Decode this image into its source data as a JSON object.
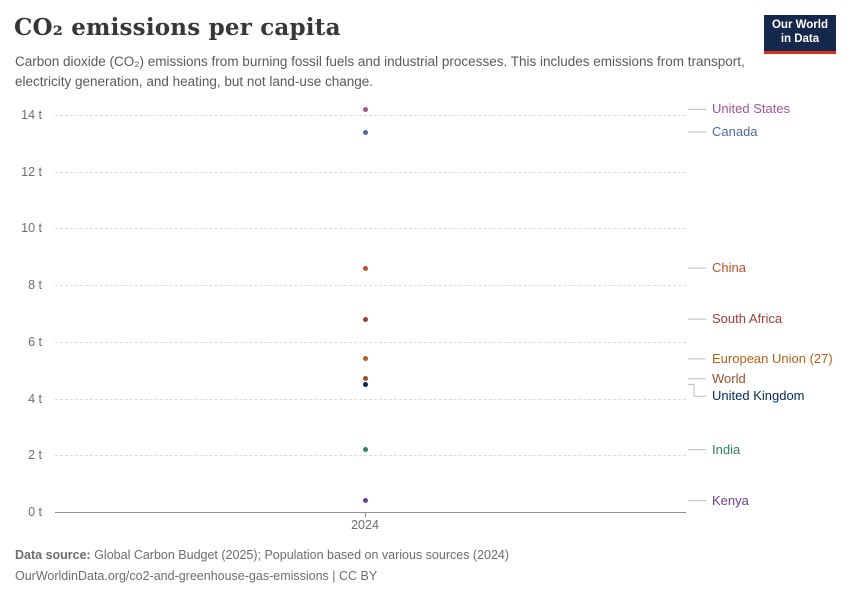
{
  "header": {
    "title": "CO₂ emissions per capita",
    "subtitle": "Carbon dioxide (CO₂) emissions from burning fossil fuels and industrial processes. This includes emissions from transport, electricity generation, and heating, but not land-use change."
  },
  "logo": {
    "line1": "Our World",
    "line2": "in Data",
    "bg_color": "#14284D",
    "accent_color": "#D8301F"
  },
  "chart_data": {
    "type": "scatter",
    "title": "CO₂ emissions per capita",
    "x_label": "2024",
    "unit": "t",
    "ylim": [
      0,
      14
    ],
    "grid": true,
    "yticks": [
      {
        "value": 0,
        "label": "0 t"
      },
      {
        "value": 2,
        "label": "2 t"
      },
      {
        "value": 4,
        "label": "4 t"
      },
      {
        "value": 6,
        "label": "6 t"
      },
      {
        "value": 8,
        "label": "8 t"
      },
      {
        "value": 10,
        "label": "10 t"
      },
      {
        "value": 12,
        "label": "12 t"
      },
      {
        "value": 14,
        "label": "14 t"
      }
    ],
    "series": [
      {
        "name": "United States",
        "value": 14.2,
        "color": "#A2559C"
      },
      {
        "name": "Canada",
        "value": 13.4,
        "color": "#4C6A9C"
      },
      {
        "name": "China",
        "value": 8.6,
        "color": "#BE512E"
      },
      {
        "name": "South Africa",
        "value": 6.8,
        "color": "#9A3E3A"
      },
      {
        "name": "European Union (27)",
        "value": 5.4,
        "color": "#B16214"
      },
      {
        "name": "World",
        "value": 4.7,
        "color": "#9A5129"
      },
      {
        "name": "United Kingdom",
        "value": 4.5,
        "color": "#00295B"
      },
      {
        "name": "India",
        "value": 2.2,
        "color": "#2C8465"
      },
      {
        "name": "Kenya",
        "value": 0.4,
        "color": "#6D3E91"
      }
    ]
  },
  "footer": {
    "source_label": "Data source:",
    "source_text": " Global Carbon Budget (2025); Population based on various sources (2024)",
    "license_text": "OurWorldinData.org/co2-and-greenhouse-gas-emissions | CC BY"
  }
}
